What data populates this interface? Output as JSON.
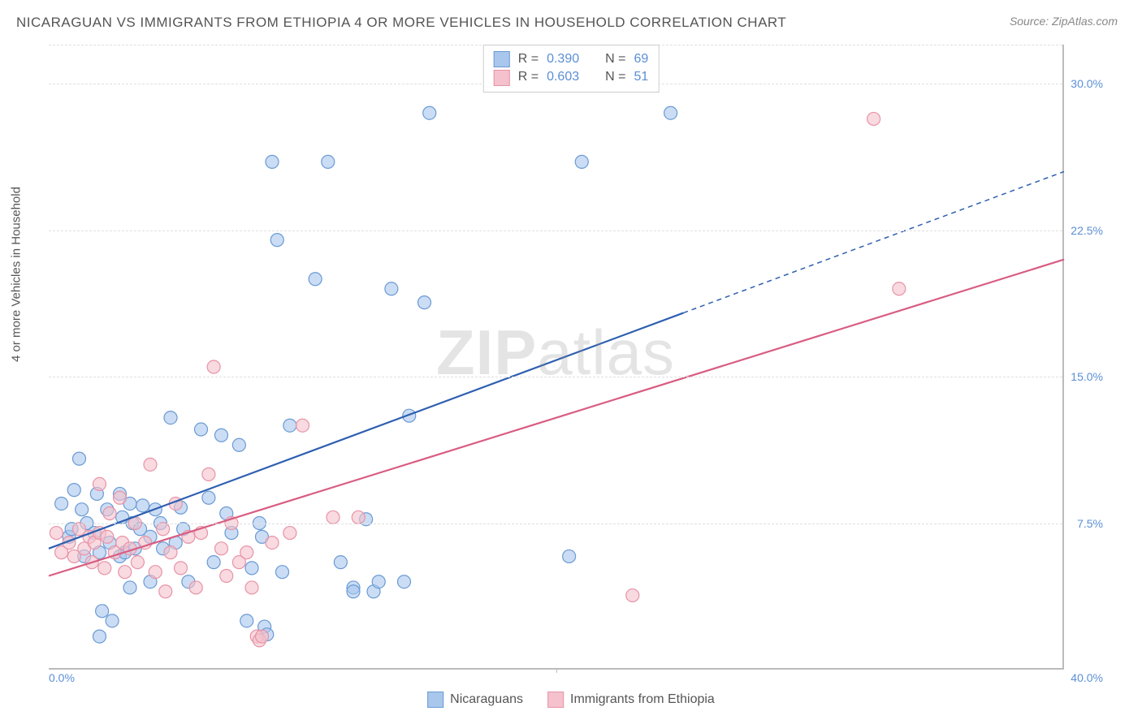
{
  "title": "NICARAGUAN VS IMMIGRANTS FROM ETHIOPIA 4 OR MORE VEHICLES IN HOUSEHOLD CORRELATION CHART",
  "source": "Source: ZipAtlas.com",
  "ylabel": "4 or more Vehicles in Household",
  "watermark": {
    "bold": "ZIP",
    "light": "atlas"
  },
  "chart": {
    "type": "scatter",
    "xlim": [
      0,
      40
    ],
    "ylim": [
      0,
      32
    ],
    "xtick_origin": "0.0%",
    "xtick_end": "40.0%",
    "yticks": [
      {
        "v": 7.5,
        "label": "7.5%"
      },
      {
        "v": 15.0,
        "label": "15.0%"
      },
      {
        "v": 22.5,
        "label": "22.5%"
      },
      {
        "v": 30.0,
        "label": "30.0%"
      }
    ],
    "xtick_marks": [
      20
    ],
    "grid_color": "#e0e0e0",
    "axis_color": "#bbbbbb",
    "background_color": "#ffffff",
    "marker_radius": 8,
    "marker_opacity": 0.6,
    "line_width": 2.2,
    "series": [
      {
        "name": "Nicaraguans",
        "color_fill": "#a9c7ec",
        "color_stroke": "#6a9ad4",
        "line_color": "#2e5fb0",
        "R": "0.390",
        "N": "69",
        "trend": {
          "x1": 0,
          "y1": 6.2,
          "x2": 40,
          "y2": 25.5,
          "solid_until_x": 25
        },
        "points": [
          [
            0.5,
            8.5
          ],
          [
            0.8,
            6.8
          ],
          [
            0.9,
            7.2
          ],
          [
            1.0,
            9.2
          ],
          [
            1.2,
            10.8
          ],
          [
            1.3,
            8.2
          ],
          [
            1.4,
            5.8
          ],
          [
            1.5,
            7.5
          ],
          [
            1.8,
            7.0
          ],
          [
            1.9,
            9.0
          ],
          [
            2.0,
            1.7
          ],
          [
            2.1,
            3.0
          ],
          [
            2.3,
            8.2
          ],
          [
            2.4,
            6.5
          ],
          [
            2.5,
            2.5
          ],
          [
            2.8,
            9.0
          ],
          [
            2.8,
            5.8
          ],
          [
            2.9,
            7.8
          ],
          [
            3.0,
            6.0
          ],
          [
            3.2,
            8.5
          ],
          [
            3.3,
            7.5
          ],
          [
            3.4,
            6.2
          ],
          [
            3.6,
            7.2
          ],
          [
            3.7,
            8.4
          ],
          [
            4.0,
            4.5
          ],
          [
            4.0,
            6.8
          ],
          [
            4.2,
            8.2
          ],
          [
            4.4,
            7.5
          ],
          [
            4.5,
            6.2
          ],
          [
            4.8,
            12.9
          ],
          [
            5.0,
            6.5
          ],
          [
            5.2,
            8.3
          ],
          [
            5.3,
            7.2
          ],
          [
            5.5,
            4.5
          ],
          [
            6.0,
            12.3
          ],
          [
            6.3,
            8.8
          ],
          [
            6.5,
            5.5
          ],
          [
            6.8,
            12.0
          ],
          [
            7.0,
            8.0
          ],
          [
            7.2,
            7.0
          ],
          [
            7.5,
            11.5
          ],
          [
            7.8,
            2.5
          ],
          [
            8.0,
            5.2
          ],
          [
            8.3,
            7.5
          ],
          [
            8.4,
            6.8
          ],
          [
            8.5,
            2.2
          ],
          [
            8.6,
            1.8
          ],
          [
            8.8,
            26.0
          ],
          [
            9.0,
            22.0
          ],
          [
            9.2,
            5.0
          ],
          [
            9.5,
            12.5
          ],
          [
            10.5,
            20.0
          ],
          [
            11.0,
            26.0
          ],
          [
            11.5,
            5.5
          ],
          [
            12.0,
            4.2
          ],
          [
            12.0,
            4.0
          ],
          [
            12.5,
            7.7
          ],
          [
            12.8,
            4.0
          ],
          [
            13.0,
            4.5
          ],
          [
            13.5,
            19.5
          ],
          [
            14.0,
            4.5
          ],
          [
            14.2,
            13.0
          ],
          [
            14.8,
            18.8
          ],
          [
            15,
            28.5
          ],
          [
            20.5,
            5.8
          ],
          [
            21.0,
            26.0
          ],
          [
            24.5,
            28.5
          ],
          [
            2.0,
            6.0
          ],
          [
            3.2,
            4.2
          ]
        ]
      },
      {
        "name": "Immigrants from Ethiopia",
        "color_fill": "#f4c1cc",
        "color_stroke": "#e893a7",
        "line_color": "#d95d82",
        "R": "0.603",
        "N": "51",
        "trend": {
          "x1": 0,
          "y1": 4.8,
          "x2": 40,
          "y2": 21.0,
          "solid_until_x": 40
        },
        "points": [
          [
            0.3,
            7.0
          ],
          [
            0.5,
            6.0
          ],
          [
            0.8,
            6.5
          ],
          [
            1.0,
            5.8
          ],
          [
            1.2,
            7.2
          ],
          [
            1.4,
            6.2
          ],
          [
            1.6,
            6.8
          ],
          [
            1.7,
            5.5
          ],
          [
            1.8,
            6.5
          ],
          [
            2.0,
            9.5
          ],
          [
            2.0,
            7.0
          ],
          [
            2.2,
            5.2
          ],
          [
            2.3,
            6.8
          ],
          [
            2.4,
            8.0
          ],
          [
            2.6,
            6.0
          ],
          [
            2.8,
            8.8
          ],
          [
            2.9,
            6.5
          ],
          [
            3.0,
            5.0
          ],
          [
            3.2,
            6.2
          ],
          [
            3.4,
            7.5
          ],
          [
            3.5,
            5.5
          ],
          [
            3.8,
            6.5
          ],
          [
            4.0,
            10.5
          ],
          [
            4.2,
            5.0
          ],
          [
            4.5,
            7.2
          ],
          [
            4.6,
            4.0
          ],
          [
            4.8,
            6.0
          ],
          [
            5.0,
            8.5
          ],
          [
            5.2,
            5.2
          ],
          [
            5.5,
            6.8
          ],
          [
            5.8,
            4.2
          ],
          [
            6.0,
            7.0
          ],
          [
            6.3,
            10.0
          ],
          [
            6.5,
            15.5
          ],
          [
            6.8,
            6.2
          ],
          [
            7.0,
            4.8
          ],
          [
            7.2,
            7.5
          ],
          [
            7.5,
            5.5
          ],
          [
            7.8,
            6.0
          ],
          [
            8.0,
            4.2
          ],
          [
            8.2,
            1.7
          ],
          [
            8.3,
            1.5
          ],
          [
            8.4,
            1.7
          ],
          [
            8.8,
            6.5
          ],
          [
            9.5,
            7.0
          ],
          [
            10.0,
            12.5
          ],
          [
            11.2,
            7.8
          ],
          [
            12.2,
            7.8
          ],
          [
            23.0,
            3.8
          ],
          [
            32.5,
            28.2
          ],
          [
            33.5,
            19.5
          ]
        ]
      }
    ]
  },
  "legend_top": {
    "rows": [
      {
        "swatch_fill": "#a9c7ec",
        "swatch_stroke": "#6a9ad4",
        "R_label": "R =",
        "R": "0.390",
        "N_label": "N =",
        "N": "69"
      },
      {
        "swatch_fill": "#f4c1cc",
        "swatch_stroke": "#e893a7",
        "R_label": "R =",
        "R": "0.603",
        "N_label": "N =",
        "N": "51"
      }
    ]
  },
  "legend_bottom": {
    "items": [
      {
        "swatch_fill": "#a9c7ec",
        "swatch_stroke": "#6a9ad4",
        "label": "Nicaraguans"
      },
      {
        "swatch_fill": "#f4c1cc",
        "swatch_stroke": "#e893a7",
        "label": "Immigrants from Ethiopia"
      }
    ]
  }
}
